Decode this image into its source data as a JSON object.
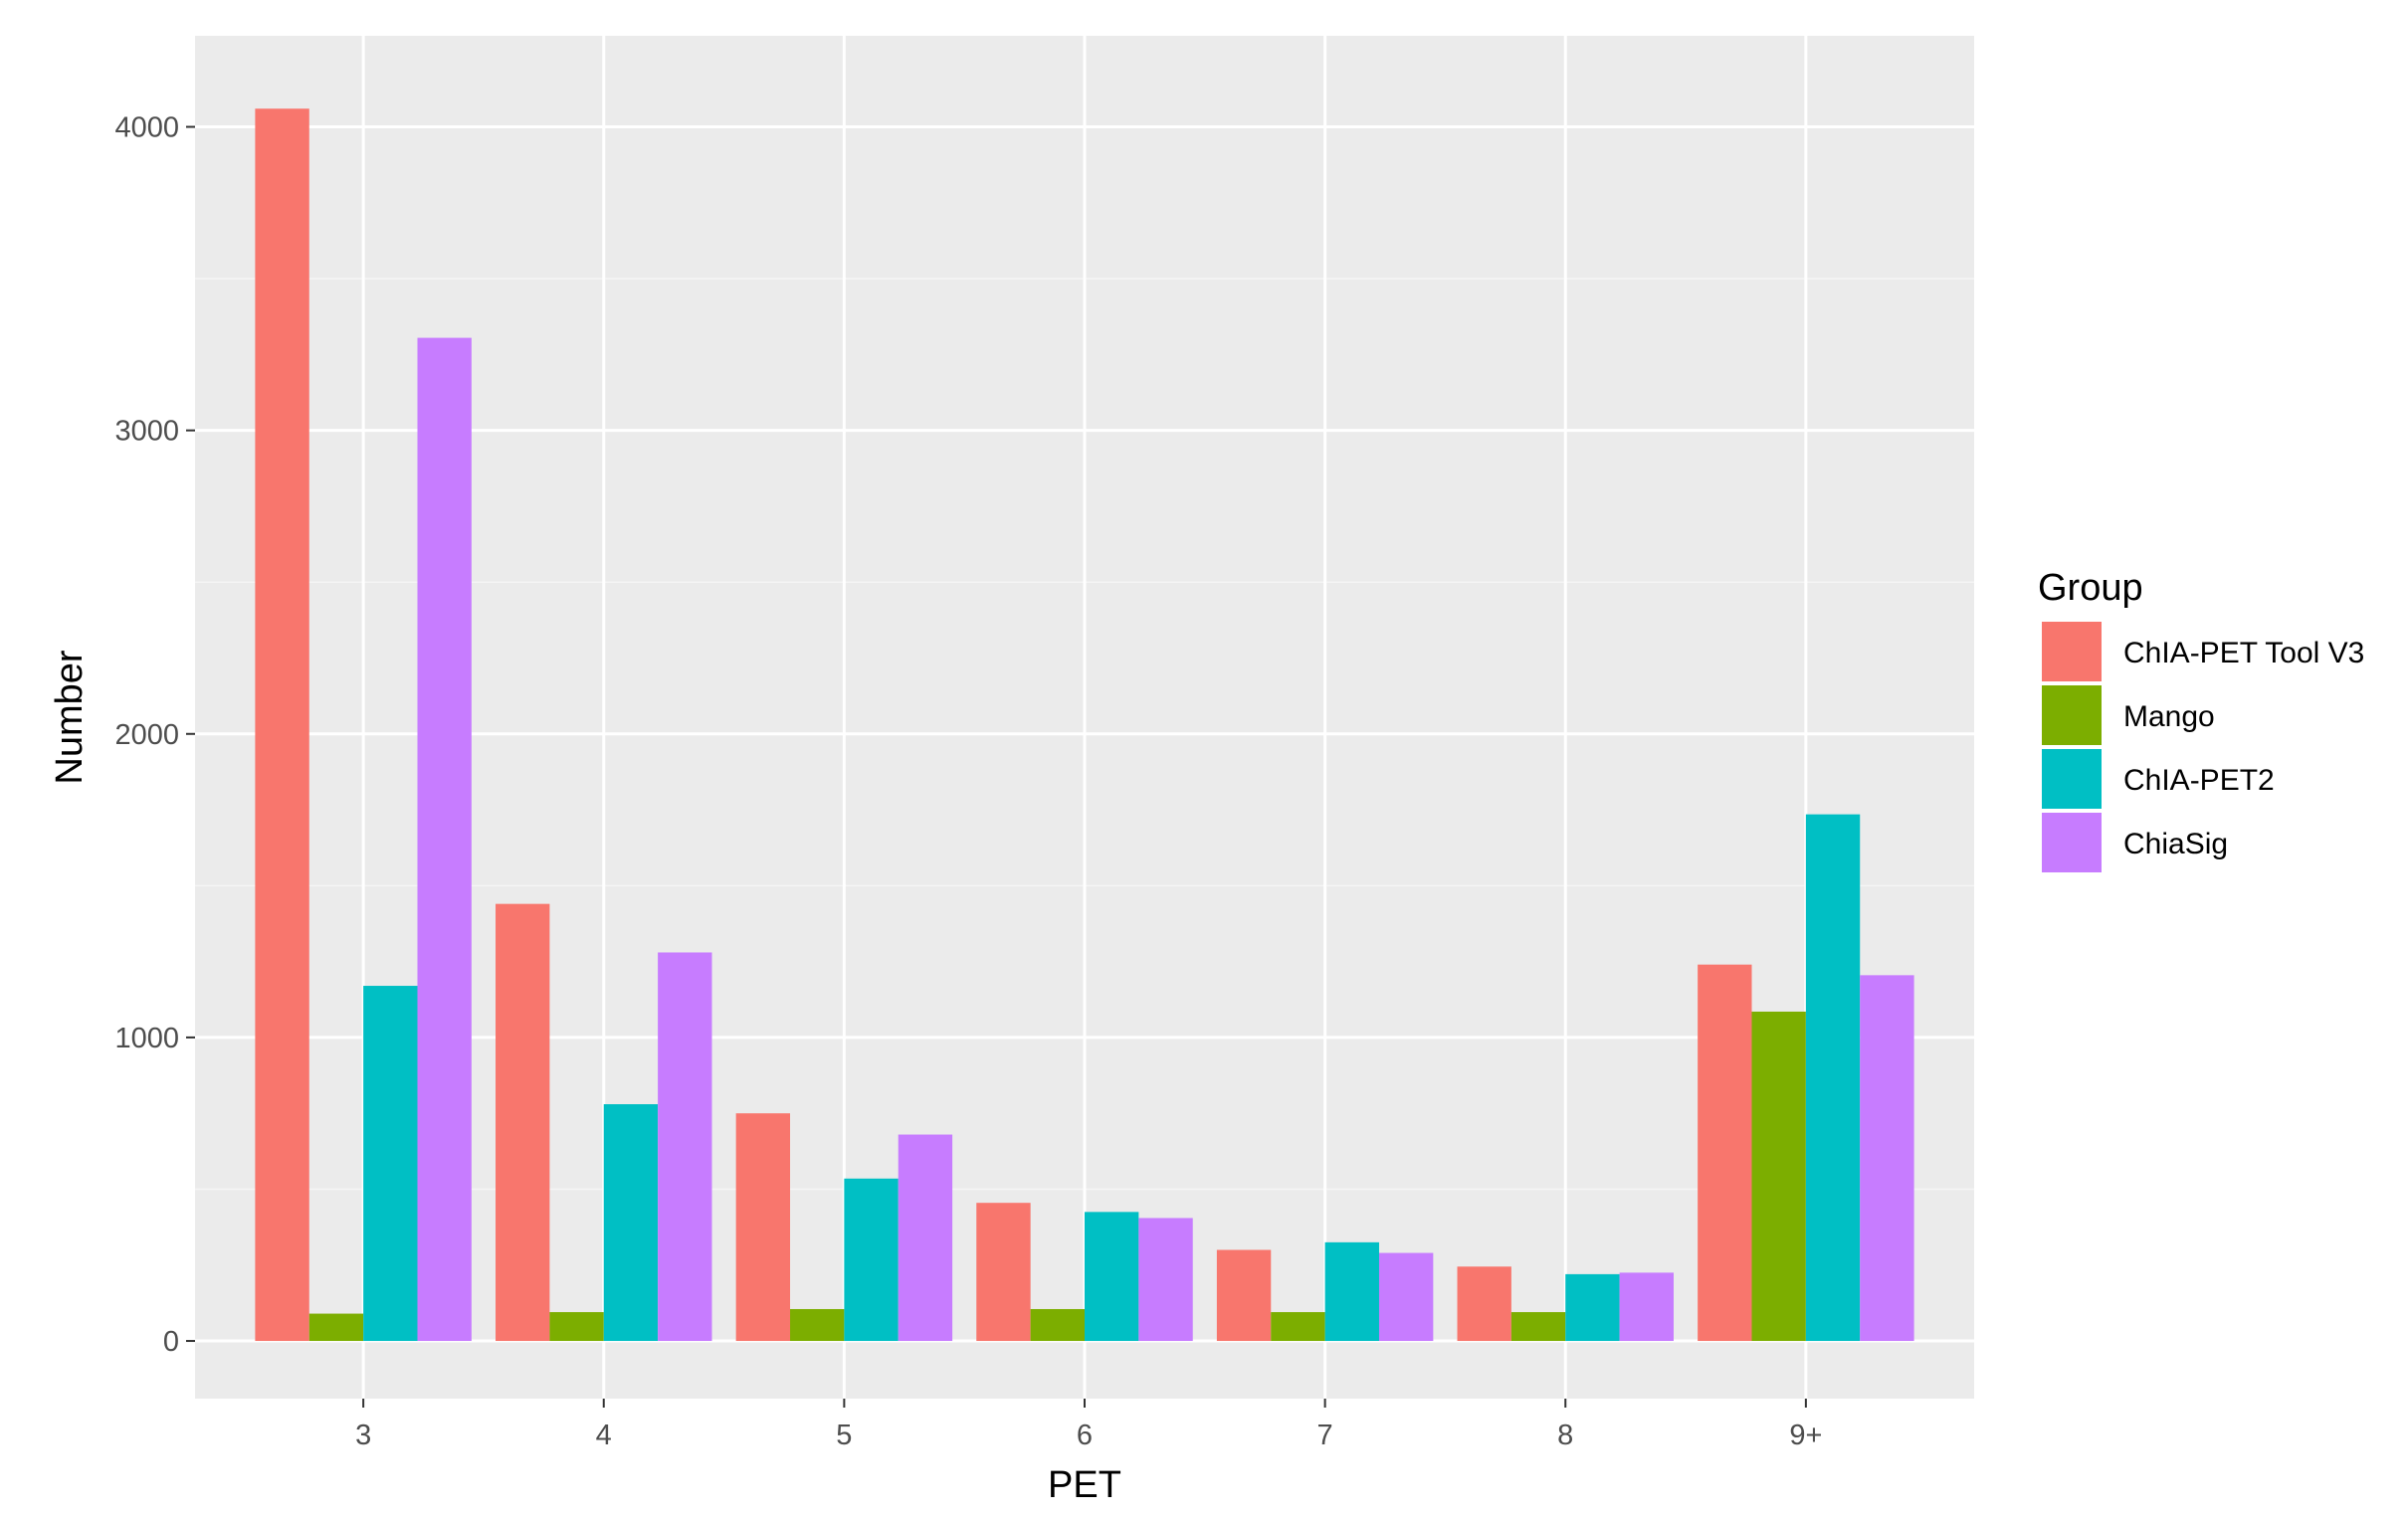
{
  "chart_data": {
    "type": "bar",
    "categories": [
      "3",
      "4",
      "5",
      "6",
      "7",
      "8",
      "9+"
    ],
    "series": [
      {
        "name": "ChIA-PET Tool V3",
        "color": "#F8766D",
        "values": [
          4060,
          1440,
          750,
          455,
          300,
          245,
          1240
        ]
      },
      {
        "name": "Mango",
        "color": "#7CAE00",
        "values": [
          90,
          95,
          105,
          105,
          95,
          95,
          1085
        ]
      },
      {
        "name": "ChIA-PET2",
        "color": "#00BFC4",
        "values": [
          1170,
          780,
          535,
          425,
          325,
          220,
          1735
        ]
      },
      {
        "name": "ChiaSig",
        "color": "#C77CFF",
        "values": [
          3305,
          1280,
          680,
          405,
          290,
          225,
          1205
        ]
      }
    ],
    "title": "",
    "xlabel": "PET",
    "ylabel": "Number",
    "ylim": [
      -190,
      4300
    ],
    "yticks": [
      0,
      1000,
      2000,
      3000,
      4000
    ],
    "ytick_labels": [
      "0",
      "1000",
      "2000",
      "3000",
      "4000"
    ],
    "grid": true,
    "legend": {
      "title": "Group",
      "position": "right"
    },
    "colors": {
      "panel_background": "#EBEBEB",
      "grid_major": "#FFFFFF",
      "grid_minor": "#F5F5F5",
      "tick_text": "#4D4D4D"
    }
  }
}
